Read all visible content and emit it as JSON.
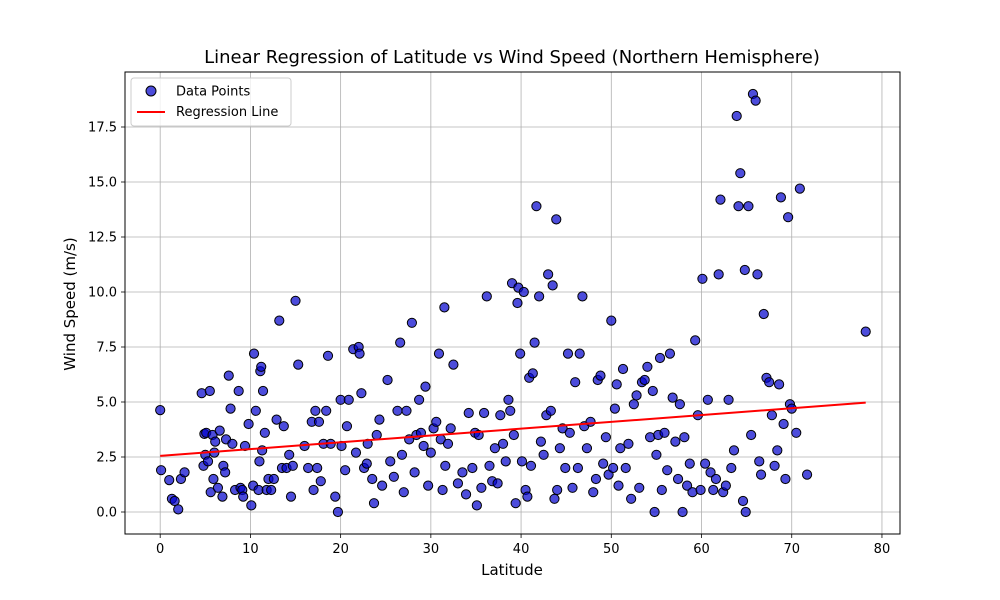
{
  "chart_data": {
    "type": "scatter",
    "title": "Linear Regression of Latitude vs Wind Speed (Northern Hemisphere)",
    "xlabel": "Latitude",
    "ylabel": "Wind Speed (m/s)",
    "xlim": [
      -3.9,
      82.0
    ],
    "ylim": [
      -1.0,
      20.0
    ],
    "xticks": [
      0,
      10,
      20,
      30,
      40,
      50,
      60,
      70,
      80
    ],
    "xtick_labels": [
      "0",
      "10",
      "20",
      "30",
      "40",
      "50",
      "60",
      "70",
      "80"
    ],
    "yticks": [
      0.0,
      2.5,
      5.0,
      7.5,
      10.0,
      12.5,
      15.0,
      17.5
    ],
    "ytick_labels": [
      "0.0",
      "2.5",
      "5.0",
      "7.5",
      "10.0",
      "12.5",
      "15.0",
      "17.5"
    ],
    "grid": true,
    "legend_position": "top-left",
    "legend": [
      "Data Points",
      "Regression Line"
    ],
    "colors": {
      "points": "#0000cc",
      "points_edge": "#000000",
      "line": "#ff0000",
      "grid": "#b0b0b0"
    },
    "regression": {
      "x_start": 0.0,
      "y_start": 2.55,
      "x_end": 78.2,
      "y_end": 4.97
    },
    "series": [
      {
        "name": "Data Points",
        "points": [
          [
            0.0,
            4.63
          ],
          [
            0.1,
            1.9
          ],
          [
            1.0,
            1.45
          ],
          [
            1.3,
            0.6
          ],
          [
            1.6,
            0.5
          ],
          [
            2.0,
            0.12
          ],
          [
            2.3,
            1.5
          ],
          [
            2.7,
            1.8
          ],
          [
            4.6,
            5.4
          ],
          [
            4.8,
            2.1
          ],
          [
            4.9,
            3.55
          ],
          [
            5.0,
            2.6
          ],
          [
            5.1,
            3.6
          ],
          [
            5.3,
            2.3
          ],
          [
            5.5,
            5.5
          ],
          [
            5.6,
            0.9
          ],
          [
            5.8,
            3.5
          ],
          [
            5.9,
            1.5
          ],
          [
            6.0,
            2.7
          ],
          [
            6.1,
            3.2
          ],
          [
            6.4,
            1.1
          ],
          [
            6.6,
            3.7
          ],
          [
            6.9,
            0.7
          ],
          [
            7.0,
            2.1
          ],
          [
            7.2,
            1.8
          ],
          [
            7.3,
            3.3
          ],
          [
            7.6,
            6.2
          ],
          [
            7.8,
            4.7
          ],
          [
            8.0,
            3.1
          ],
          [
            8.3,
            1.0
          ],
          [
            8.7,
            5.5
          ],
          [
            8.9,
            1.1
          ],
          [
            9.1,
            1.0
          ],
          [
            9.2,
            0.7
          ],
          [
            9.4,
            3.0
          ],
          [
            9.8,
            4.0
          ],
          [
            10.1,
            0.3
          ],
          [
            10.3,
            1.2
          ],
          [
            10.4,
            7.2
          ],
          [
            10.6,
            4.6
          ],
          [
            10.9,
            1.0
          ],
          [
            11.0,
            2.3
          ],
          [
            11.1,
            6.4
          ],
          [
            11.2,
            6.6
          ],
          [
            11.3,
            2.8
          ],
          [
            11.4,
            5.5
          ],
          [
            11.6,
            3.6
          ],
          [
            11.8,
            1.0
          ],
          [
            12.0,
            1.5
          ],
          [
            12.3,
            1.0
          ],
          [
            12.6,
            1.5
          ],
          [
            12.9,
            4.2
          ],
          [
            13.2,
            8.7
          ],
          [
            13.5,
            2.0
          ],
          [
            13.7,
            3.9
          ],
          [
            14.0,
            2.0
          ],
          [
            14.3,
            2.6
          ],
          [
            14.5,
            0.7
          ],
          [
            14.7,
            2.1
          ],
          [
            15.0,
            9.6
          ],
          [
            15.3,
            6.7
          ],
          [
            16.0,
            3.0
          ],
          [
            16.4,
            2.0
          ],
          [
            16.8,
            4.1
          ],
          [
            17.0,
            1.0
          ],
          [
            17.2,
            4.6
          ],
          [
            17.4,
            2.0
          ],
          [
            17.6,
            4.1
          ],
          [
            17.8,
            1.4
          ],
          [
            18.1,
            3.1
          ],
          [
            18.4,
            4.6
          ],
          [
            18.6,
            7.1
          ],
          [
            18.9,
            3.1
          ],
          [
            19.4,
            0.7
          ],
          [
            19.7,
            0.0
          ],
          [
            20.0,
            5.1
          ],
          [
            20.1,
            3.0
          ],
          [
            20.5,
            1.9
          ],
          [
            20.7,
            3.9
          ],
          [
            20.9,
            5.1
          ],
          [
            21.4,
            7.4
          ],
          [
            21.7,
            2.7
          ],
          [
            22.0,
            7.5
          ],
          [
            22.1,
            7.2
          ],
          [
            22.3,
            5.4
          ],
          [
            22.6,
            2.0
          ],
          [
            22.9,
            2.2
          ],
          [
            23.0,
            3.1
          ],
          [
            23.5,
            1.5
          ],
          [
            23.7,
            0.4
          ],
          [
            24.0,
            3.5
          ],
          [
            24.3,
            4.2
          ],
          [
            24.6,
            1.2
          ],
          [
            25.2,
            6.0
          ],
          [
            25.5,
            2.3
          ],
          [
            25.9,
            1.6
          ],
          [
            26.3,
            4.6
          ],
          [
            26.6,
            7.7
          ],
          [
            26.8,
            2.6
          ],
          [
            27.0,
            0.9
          ],
          [
            27.3,
            4.6
          ],
          [
            27.6,
            3.3
          ],
          [
            27.9,
            8.6
          ],
          [
            28.2,
            1.8
          ],
          [
            28.4,
            3.5
          ],
          [
            28.7,
            5.1
          ],
          [
            28.9,
            3.6
          ],
          [
            29.2,
            3.0
          ],
          [
            29.4,
            5.7
          ],
          [
            29.7,
            1.2
          ],
          [
            30.0,
            2.7
          ],
          [
            30.3,
            3.8
          ],
          [
            30.6,
            4.1
          ],
          [
            30.9,
            7.2
          ],
          [
            31.1,
            3.3
          ],
          [
            31.3,
            1.0
          ],
          [
            31.5,
            9.3
          ],
          [
            31.6,
            2.1
          ],
          [
            31.9,
            3.1
          ],
          [
            32.2,
            3.8
          ],
          [
            32.5,
            6.7
          ],
          [
            33.0,
            1.3
          ],
          [
            33.5,
            1.8
          ],
          [
            33.9,
            0.8
          ],
          [
            34.2,
            4.5
          ],
          [
            34.6,
            2.0
          ],
          [
            34.9,
            3.6
          ],
          [
            35.1,
            0.3
          ],
          [
            35.3,
            3.5
          ],
          [
            35.6,
            1.1
          ],
          [
            35.9,
            4.5
          ],
          [
            36.2,
            9.8
          ],
          [
            36.5,
            2.1
          ],
          [
            36.8,
            1.4
          ],
          [
            37.1,
            2.9
          ],
          [
            37.4,
            1.3
          ],
          [
            37.7,
            4.4
          ],
          [
            38.0,
            3.1
          ],
          [
            38.3,
            2.3
          ],
          [
            38.6,
            5.1
          ],
          [
            38.8,
            4.6
          ],
          [
            39.0,
            10.4
          ],
          [
            39.2,
            3.5
          ],
          [
            39.4,
            0.4
          ],
          [
            39.6,
            9.5
          ],
          [
            39.7,
            10.2
          ],
          [
            39.9,
            7.2
          ],
          [
            40.1,
            2.3
          ],
          [
            40.3,
            10.0
          ],
          [
            40.5,
            1.0
          ],
          [
            40.7,
            0.7
          ],
          [
            40.9,
            6.1
          ],
          [
            41.1,
            2.1
          ],
          [
            41.3,
            6.3
          ],
          [
            41.5,
            7.7
          ],
          [
            41.7,
            13.9
          ],
          [
            42.0,
            9.8
          ],
          [
            42.2,
            3.2
          ],
          [
            42.5,
            2.6
          ],
          [
            42.8,
            4.4
          ],
          [
            43.0,
            10.8
          ],
          [
            43.3,
            4.6
          ],
          [
            43.5,
            10.3
          ],
          [
            43.7,
            0.6
          ],
          [
            43.9,
            13.3
          ],
          [
            44.0,
            1.0
          ],
          [
            44.3,
            2.9
          ],
          [
            44.6,
            3.8
          ],
          [
            44.9,
            2.0
          ],
          [
            45.2,
            7.2
          ],
          [
            45.4,
            3.6
          ],
          [
            45.7,
            1.1
          ],
          [
            46.0,
            5.9
          ],
          [
            46.3,
            2.0
          ],
          [
            46.5,
            7.2
          ],
          [
            46.8,
            9.8
          ],
          [
            47.0,
            3.9
          ],
          [
            47.3,
            2.9
          ],
          [
            47.7,
            4.1
          ],
          [
            48.0,
            0.9
          ],
          [
            48.3,
            1.5
          ],
          [
            48.5,
            6.0
          ],
          [
            48.8,
            6.2
          ],
          [
            49.1,
            2.2
          ],
          [
            49.4,
            3.4
          ],
          [
            49.7,
            1.7
          ],
          [
            50.0,
            8.7
          ],
          [
            50.2,
            2.0
          ],
          [
            50.4,
            4.7
          ],
          [
            50.6,
            5.8
          ],
          [
            50.8,
            1.2
          ],
          [
            51.0,
            2.9
          ],
          [
            51.3,
            6.5
          ],
          [
            51.6,
            2.0
          ],
          [
            51.9,
            3.1
          ],
          [
            52.2,
            0.6
          ],
          [
            52.5,
            4.9
          ],
          [
            52.8,
            5.3
          ],
          [
            53.1,
            1.1
          ],
          [
            53.4,
            5.9
          ],
          [
            53.7,
            6.0
          ],
          [
            54.0,
            6.6
          ],
          [
            54.3,
            3.4
          ],
          [
            54.6,
            5.5
          ],
          [
            54.8,
            0.0
          ],
          [
            55.0,
            2.6
          ],
          [
            55.2,
            3.5
          ],
          [
            55.4,
            7.0
          ],
          [
            55.6,
            1.0
          ],
          [
            55.9,
            3.6
          ],
          [
            56.2,
            1.9
          ],
          [
            56.5,
            7.2
          ],
          [
            56.8,
            5.2
          ],
          [
            57.1,
            3.2
          ],
          [
            57.4,
            1.5
          ],
          [
            57.6,
            4.9
          ],
          [
            57.9,
            0.0
          ],
          [
            58.1,
            3.4
          ],
          [
            58.4,
            1.2
          ],
          [
            58.7,
            2.2
          ],
          [
            59.0,
            0.9
          ],
          [
            59.3,
            7.8
          ],
          [
            59.6,
            4.4
          ],
          [
            59.9,
            1.0
          ],
          [
            60.1,
            10.6
          ],
          [
            60.4,
            2.2
          ],
          [
            60.7,
            5.1
          ],
          [
            61.0,
            1.8
          ],
          [
            61.3,
            1.0
          ],
          [
            61.6,
            1.5
          ],
          [
            61.9,
            10.8
          ],
          [
            62.1,
            14.2
          ],
          [
            62.4,
            0.9
          ],
          [
            62.7,
            1.2
          ],
          [
            63.0,
            5.1
          ],
          [
            63.3,
            2.0
          ],
          [
            63.6,
            2.8
          ],
          [
            63.9,
            18.0
          ],
          [
            64.1,
            13.9
          ],
          [
            64.3,
            15.4
          ],
          [
            64.6,
            0.5
          ],
          [
            64.8,
            11.0
          ],
          [
            64.9,
            0.0
          ],
          [
            65.2,
            13.9
          ],
          [
            65.5,
            3.5
          ],
          [
            65.7,
            19.0
          ],
          [
            66.0,
            18.7
          ],
          [
            66.2,
            10.8
          ],
          [
            66.4,
            2.3
          ],
          [
            66.6,
            1.7
          ],
          [
            66.9,
            9.0
          ],
          [
            67.2,
            6.1
          ],
          [
            67.5,
            5.9
          ],
          [
            67.8,
            4.4
          ],
          [
            68.1,
            2.1
          ],
          [
            68.4,
            2.8
          ],
          [
            68.6,
            5.8
          ],
          [
            68.8,
            14.3
          ],
          [
            69.1,
            4.0
          ],
          [
            69.3,
            1.5
          ],
          [
            69.6,
            13.4
          ],
          [
            69.8,
            4.9
          ],
          [
            70.0,
            4.7
          ],
          [
            70.5,
            3.6
          ],
          [
            70.9,
            14.7
          ],
          [
            71.7,
            1.7
          ],
          [
            78.2,
            8.2
          ]
        ]
      }
    ]
  }
}
